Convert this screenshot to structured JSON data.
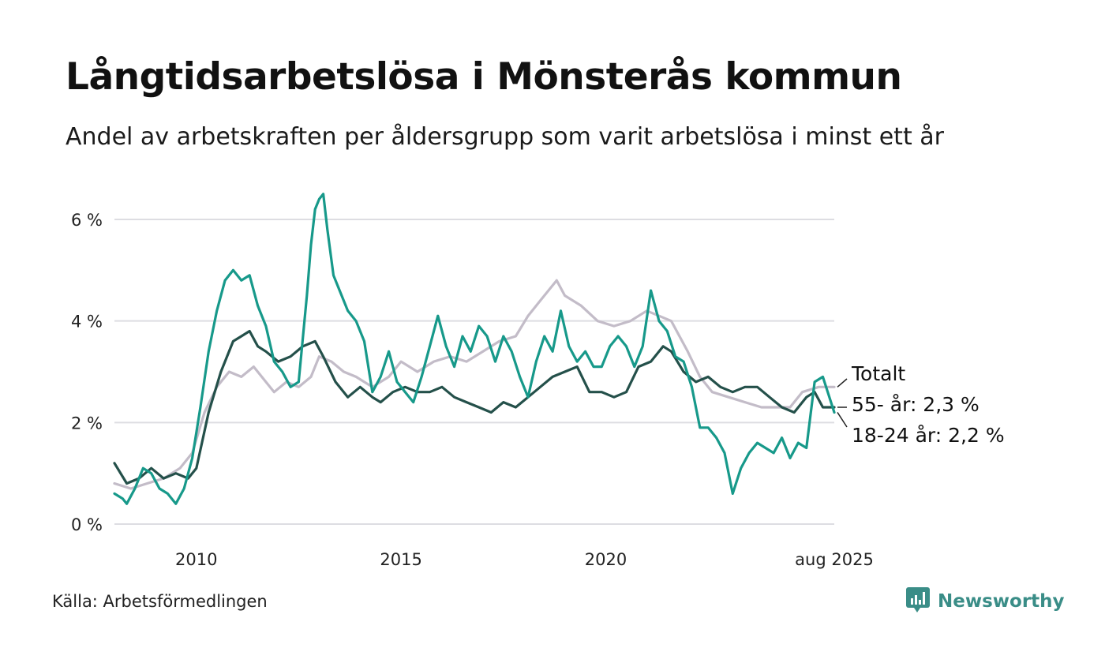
{
  "title": "Långtidsarbetslösa i Mönsterås kommun",
  "subtitle": "Andel av arbetskraften per åldersgrupp som varit arbetslösa i minst ett år",
  "source": "Källa: Arbetsförmedlingen",
  "brand": "Newsworthy",
  "colors": {
    "total": "#c3bcc8",
    "age55": "#24504a",
    "age1824": "#17998a",
    "grid": "#dddde2",
    "brand": "#3a8d87"
  },
  "chart_data": {
    "type": "line",
    "x_unit": "year",
    "xlim": [
      2008.0,
      2025.58
    ],
    "ylim": [
      0,
      6.6
    ],
    "y_ticks": [
      0,
      2,
      4,
      6
    ],
    "y_tick_labels": [
      "0 %",
      "2 %",
      "4 %",
      "6 %"
    ],
    "x_ticks": [
      2010,
      2015,
      2020,
      2025.58
    ],
    "x_tick_labels": [
      "2010",
      "2015",
      "2020",
      "aug 2025"
    ],
    "grid": true,
    "end_labels": [
      "Totalt",
      "55- år: 2,3 %",
      "18-24 år: 2,2 %"
    ],
    "series": [
      {
        "key": "total",
        "name": "Totalt",
        "color": "#c3bcc8",
        "points": [
          [
            2008.0,
            0.8
          ],
          [
            2008.4,
            0.7
          ],
          [
            2008.8,
            0.8
          ],
          [
            2009.2,
            0.9
          ],
          [
            2009.6,
            1.1
          ],
          [
            2009.9,
            1.4
          ],
          [
            2010.2,
            2.2
          ],
          [
            2010.5,
            2.7
          ],
          [
            2010.8,
            3.0
          ],
          [
            2011.1,
            2.9
          ],
          [
            2011.4,
            3.1
          ],
          [
            2011.7,
            2.8
          ],
          [
            2011.9,
            2.6
          ],
          [
            2012.2,
            2.8
          ],
          [
            2012.5,
            2.7
          ],
          [
            2012.8,
            2.9
          ],
          [
            2013.0,
            3.3
          ],
          [
            2013.3,
            3.2
          ],
          [
            2013.6,
            3.0
          ],
          [
            2013.9,
            2.9
          ],
          [
            2014.3,
            2.7
          ],
          [
            2014.7,
            2.9
          ],
          [
            2015.0,
            3.2
          ],
          [
            2015.4,
            3.0
          ],
          [
            2015.8,
            3.2
          ],
          [
            2016.2,
            3.3
          ],
          [
            2016.6,
            3.2
          ],
          [
            2017.0,
            3.4
          ],
          [
            2017.4,
            3.6
          ],
          [
            2017.8,
            3.7
          ],
          [
            2018.1,
            4.1
          ],
          [
            2018.4,
            4.4
          ],
          [
            2018.8,
            4.8
          ],
          [
            2019.0,
            4.5
          ],
          [
            2019.4,
            4.3
          ],
          [
            2019.8,
            4.0
          ],
          [
            2020.2,
            3.9
          ],
          [
            2020.6,
            4.0
          ],
          [
            2021.0,
            4.2
          ],
          [
            2021.3,
            4.1
          ],
          [
            2021.6,
            4.0
          ],
          [
            2022.0,
            3.4
          ],
          [
            2022.3,
            2.9
          ],
          [
            2022.6,
            2.6
          ],
          [
            2023.0,
            2.5
          ],
          [
            2023.4,
            2.4
          ],
          [
            2023.8,
            2.3
          ],
          [
            2024.2,
            2.3
          ],
          [
            2024.5,
            2.3
          ],
          [
            2024.8,
            2.6
          ],
          [
            2025.2,
            2.7
          ],
          [
            2025.58,
            2.7
          ]
        ]
      },
      {
        "key": "age55",
        "name": "55- år",
        "color": "#24504a",
        "points": [
          [
            2008.0,
            1.2
          ],
          [
            2008.3,
            0.8
          ],
          [
            2008.6,
            0.9
          ],
          [
            2008.9,
            1.1
          ],
          [
            2009.2,
            0.9
          ],
          [
            2009.5,
            1.0
          ],
          [
            2009.8,
            0.9
          ],
          [
            2010.0,
            1.1
          ],
          [
            2010.3,
            2.2
          ],
          [
            2010.6,
            3.0
          ],
          [
            2010.9,
            3.6
          ],
          [
            2011.1,
            3.7
          ],
          [
            2011.3,
            3.8
          ],
          [
            2011.5,
            3.5
          ],
          [
            2011.7,
            3.4
          ],
          [
            2012.0,
            3.2
          ],
          [
            2012.3,
            3.3
          ],
          [
            2012.6,
            3.5
          ],
          [
            2012.9,
            3.6
          ],
          [
            2013.1,
            3.3
          ],
          [
            2013.4,
            2.8
          ],
          [
            2013.7,
            2.5
          ],
          [
            2014.0,
            2.7
          ],
          [
            2014.3,
            2.5
          ],
          [
            2014.5,
            2.4
          ],
          [
            2014.8,
            2.6
          ],
          [
            2015.1,
            2.7
          ],
          [
            2015.4,
            2.6
          ],
          [
            2015.7,
            2.6
          ],
          [
            2016.0,
            2.7
          ],
          [
            2016.3,
            2.5
          ],
          [
            2016.6,
            2.4
          ],
          [
            2016.9,
            2.3
          ],
          [
            2017.2,
            2.2
          ],
          [
            2017.5,
            2.4
          ],
          [
            2017.8,
            2.3
          ],
          [
            2018.1,
            2.5
          ],
          [
            2018.4,
            2.7
          ],
          [
            2018.7,
            2.9
          ],
          [
            2019.0,
            3.0
          ],
          [
            2019.3,
            3.1
          ],
          [
            2019.6,
            2.6
          ],
          [
            2019.9,
            2.6
          ],
          [
            2020.2,
            2.5
          ],
          [
            2020.5,
            2.6
          ],
          [
            2020.8,
            3.1
          ],
          [
            2021.1,
            3.2
          ],
          [
            2021.4,
            3.5
          ],
          [
            2021.6,
            3.4
          ],
          [
            2021.9,
            3.0
          ],
          [
            2022.2,
            2.8
          ],
          [
            2022.5,
            2.9
          ],
          [
            2022.8,
            2.7
          ],
          [
            2023.1,
            2.6
          ],
          [
            2023.4,
            2.7
          ],
          [
            2023.7,
            2.7
          ],
          [
            2024.0,
            2.5
          ],
          [
            2024.3,
            2.3
          ],
          [
            2024.6,
            2.2
          ],
          [
            2024.9,
            2.5
          ],
          [
            2025.1,
            2.6
          ],
          [
            2025.3,
            2.3
          ],
          [
            2025.58,
            2.3
          ]
        ]
      },
      {
        "key": "age1824",
        "name": "18-24 år",
        "color": "#17998a",
        "points": [
          [
            2008.0,
            0.6
          ],
          [
            2008.2,
            0.5
          ],
          [
            2008.3,
            0.4
          ],
          [
            2008.5,
            0.7
          ],
          [
            2008.7,
            1.1
          ],
          [
            2008.9,
            1.0
          ],
          [
            2009.1,
            0.7
          ],
          [
            2009.3,
            0.6
          ],
          [
            2009.5,
            0.4
          ],
          [
            2009.7,
            0.7
          ],
          [
            2009.9,
            1.3
          ],
          [
            2010.1,
            2.3
          ],
          [
            2010.3,
            3.4
          ],
          [
            2010.5,
            4.2
          ],
          [
            2010.7,
            4.8
          ],
          [
            2010.9,
            5.0
          ],
          [
            2011.1,
            4.8
          ],
          [
            2011.3,
            4.9
          ],
          [
            2011.5,
            4.3
          ],
          [
            2011.7,
            3.9
          ],
          [
            2011.9,
            3.2
          ],
          [
            2012.1,
            3.0
          ],
          [
            2012.3,
            2.7
          ],
          [
            2012.5,
            2.8
          ],
          [
            2012.7,
            4.5
          ],
          [
            2012.8,
            5.5
          ],
          [
            2012.9,
            6.2
          ],
          [
            2013.0,
            6.4
          ],
          [
            2013.1,
            6.5
          ],
          [
            2013.2,
            5.8
          ],
          [
            2013.35,
            4.9
          ],
          [
            2013.5,
            4.6
          ],
          [
            2013.7,
            4.2
          ],
          [
            2013.9,
            4.0
          ],
          [
            2014.1,
            3.6
          ],
          [
            2014.3,
            2.6
          ],
          [
            2014.5,
            2.9
          ],
          [
            2014.7,
            3.4
          ],
          [
            2014.9,
            2.8
          ],
          [
            2015.1,
            2.6
          ],
          [
            2015.3,
            2.4
          ],
          [
            2015.5,
            2.9
          ],
          [
            2015.7,
            3.5
          ],
          [
            2015.9,
            4.1
          ],
          [
            2016.1,
            3.5
          ],
          [
            2016.3,
            3.1
          ],
          [
            2016.5,
            3.7
          ],
          [
            2016.7,
            3.4
          ],
          [
            2016.9,
            3.9
          ],
          [
            2017.1,
            3.7
          ],
          [
            2017.3,
            3.2
          ],
          [
            2017.5,
            3.7
          ],
          [
            2017.7,
            3.4
          ],
          [
            2017.9,
            2.9
          ],
          [
            2018.1,
            2.5
          ],
          [
            2018.3,
            3.2
          ],
          [
            2018.5,
            3.7
          ],
          [
            2018.7,
            3.4
          ],
          [
            2018.9,
            4.2
          ],
          [
            2019.1,
            3.5
          ],
          [
            2019.3,
            3.2
          ],
          [
            2019.5,
            3.4
          ],
          [
            2019.7,
            3.1
          ],
          [
            2019.9,
            3.1
          ],
          [
            2020.1,
            3.5
          ],
          [
            2020.3,
            3.7
          ],
          [
            2020.5,
            3.5
          ],
          [
            2020.7,
            3.1
          ],
          [
            2020.9,
            3.5
          ],
          [
            2021.1,
            4.6
          ],
          [
            2021.3,
            4.0
          ],
          [
            2021.5,
            3.8
          ],
          [
            2021.7,
            3.3
          ],
          [
            2021.9,
            3.2
          ],
          [
            2022.1,
            2.7
          ],
          [
            2022.3,
            1.9
          ],
          [
            2022.5,
            1.9
          ],
          [
            2022.7,
            1.7
          ],
          [
            2022.9,
            1.4
          ],
          [
            2023.1,
            0.6
          ],
          [
            2023.3,
            1.1
          ],
          [
            2023.5,
            1.4
          ],
          [
            2023.7,
            1.6
          ],
          [
            2023.9,
            1.5
          ],
          [
            2024.1,
            1.4
          ],
          [
            2024.3,
            1.7
          ],
          [
            2024.5,
            1.3
          ],
          [
            2024.7,
            1.6
          ],
          [
            2024.9,
            1.5
          ],
          [
            2025.1,
            2.8
          ],
          [
            2025.3,
            2.9
          ],
          [
            2025.58,
            2.2
          ]
        ]
      }
    ]
  }
}
